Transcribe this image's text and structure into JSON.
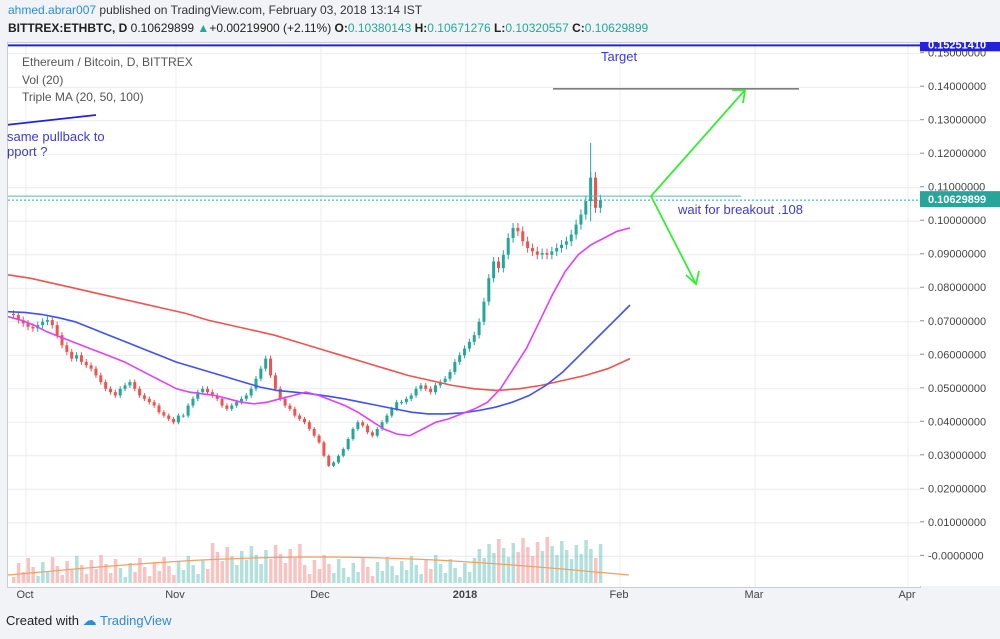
{
  "header": {
    "user": "ahmed.abrar007",
    "published": " published on TradingView.com, February 03, 2018 13:14 IST",
    "symbol": "BITTREX:ETHBTC, D",
    "price": "0.10629899",
    "change": "+0.00219900 (+2.11%)",
    "open_label": "O:",
    "open": "0.10380143",
    "high_label": "H:",
    "high": "0.10671276",
    "low_label": "L:",
    "low": "0.10320557",
    "close_label": "C:",
    "close": "0.10629899"
  },
  "legend": {
    "title": "Ethereum / Bitcoin, D, BITTREX",
    "vol": "Vol (20)",
    "ma": "Triple MA (20, 50, 100)"
  },
  "annotations": {
    "target": "Target",
    "breakout": "wait for breakout .108",
    "pullback_line1": "same pullback to",
    "pullback_line2": "pport ?"
  },
  "footer": {
    "created": "Created with",
    "brand": "TradingView"
  },
  "colors": {
    "up": "#26a69a",
    "down": "#ef5350",
    "ma20": "#e040fb",
    "ma50": "#3f51f5",
    "ma100": "#ef5350",
    "annotation_blue": "#2222dd",
    "arrow_green": "#33ee33"
  },
  "chart_data": {
    "type": "candlestick",
    "title": "Ethereum / Bitcoin, D, BITTREX",
    "x_tick_labels": [
      "Oct",
      "Nov",
      "Dec",
      "2018",
      "Feb",
      "Mar",
      "Apr"
    ],
    "y_tick_labels": [
      "0.15000000",
      "0.14000000",
      "0.13000000",
      "0.12000000",
      "0.11000000",
      "0.10000000",
      "0.09000000",
      "0.08000000",
      "0.07000000",
      "0.06000000",
      "0.05000000",
      "0.04000000",
      "0.03000000",
      "0.02000000",
      "0.01000000",
      "-0.0000000"
    ],
    "ylim": [
      -0.002,
      0.152
    ],
    "last_price_label": "0.10629899",
    "top_price_label": "0.15251410",
    "close_series": [
      0.072,
      0.0705,
      0.0695,
      0.0685,
      0.068,
      0.069,
      0.07,
      0.0705,
      0.069,
      0.066,
      0.063,
      0.061,
      0.059,
      0.06,
      0.058,
      0.057,
      0.056,
      0.054,
      0.052,
      0.05,
      0.049,
      0.048,
      0.05,
      0.051,
      0.052,
      0.05,
      0.048,
      0.047,
      0.046,
      0.045,
      0.043,
      0.042,
      0.041,
      0.04,
      0.042,
      0.042,
      0.045,
      0.047,
      0.049,
      0.05,
      0.049,
      0.048,
      0.047,
      0.045,
      0.044,
      0.045,
      0.046,
      0.047,
      0.048,
      0.05,
      0.053,
      0.056,
      0.059,
      0.054,
      0.05,
      0.047,
      0.045,
      0.044,
      0.042,
      0.041,
      0.04,
      0.038,
      0.036,
      0.034,
      0.03,
      0.027,
      0.028,
      0.03,
      0.032,
      0.035,
      0.038,
      0.04,
      0.039,
      0.037,
      0.036,
      0.038,
      0.04,
      0.042,
      0.044,
      0.046,
      0.046,
      0.047,
      0.048,
      0.05,
      0.051,
      0.05,
      0.049,
      0.051,
      0.052,
      0.053,
      0.055,
      0.058,
      0.06,
      0.062,
      0.064,
      0.066,
      0.07,
      0.076,
      0.083,
      0.088,
      0.086,
      0.09,
      0.095,
      0.098,
      0.097,
      0.094,
      0.092,
      0.091,
      0.09,
      0.0905,
      0.09,
      0.091,
      0.092,
      0.093,
      0.094,
      0.096,
      0.099,
      0.102,
      0.106,
      0.113,
      0.104,
      0.1063
    ],
    "series": [
      {
        "name": "MA 20",
        "values": [
          0.0715,
          0.0705,
          0.069,
          0.067,
          0.0655,
          0.064,
          0.0625,
          0.061,
          0.0595,
          0.058,
          0.056,
          0.054,
          0.052,
          0.05,
          0.049,
          0.0485,
          0.048,
          0.047,
          0.046,
          0.0455,
          0.046,
          0.047,
          0.048,
          0.049,
          0.048,
          0.0465,
          0.045,
          0.043,
          0.0405,
          0.038,
          0.0365,
          0.036,
          0.038,
          0.04,
          0.041,
          0.0425,
          0.044,
          0.046,
          0.05,
          0.056,
          0.062,
          0.07,
          0.078,
          0.085,
          0.09,
          0.093,
          0.095,
          0.097,
          0.098
        ]
      },
      {
        "name": "MA 50",
        "values": [
          0.073,
          0.0728,
          0.0722,
          0.0712,
          0.07,
          0.068,
          0.066,
          0.064,
          0.062,
          0.06,
          0.058,
          0.0565,
          0.055,
          0.0535,
          0.052,
          0.0505,
          0.0495,
          0.049,
          0.0485,
          0.0478,
          0.047,
          0.046,
          0.045,
          0.044,
          0.043,
          0.0425,
          0.0425,
          0.0428,
          0.0435,
          0.0445,
          0.046,
          0.048,
          0.051,
          0.055,
          0.06,
          0.065,
          0.07,
          0.075
        ]
      },
      {
        "name": "MA 100",
        "values": [
          0.084,
          0.083,
          0.0815,
          0.08,
          0.0785,
          0.077,
          0.0755,
          0.074,
          0.0725,
          0.0705,
          0.069,
          0.0675,
          0.066,
          0.064,
          0.062,
          0.06,
          0.058,
          0.056,
          0.054,
          0.0525,
          0.051,
          0.05,
          0.0495,
          0.05,
          0.051,
          0.0525,
          0.054,
          0.056,
          0.059
        ]
      }
    ]
  }
}
